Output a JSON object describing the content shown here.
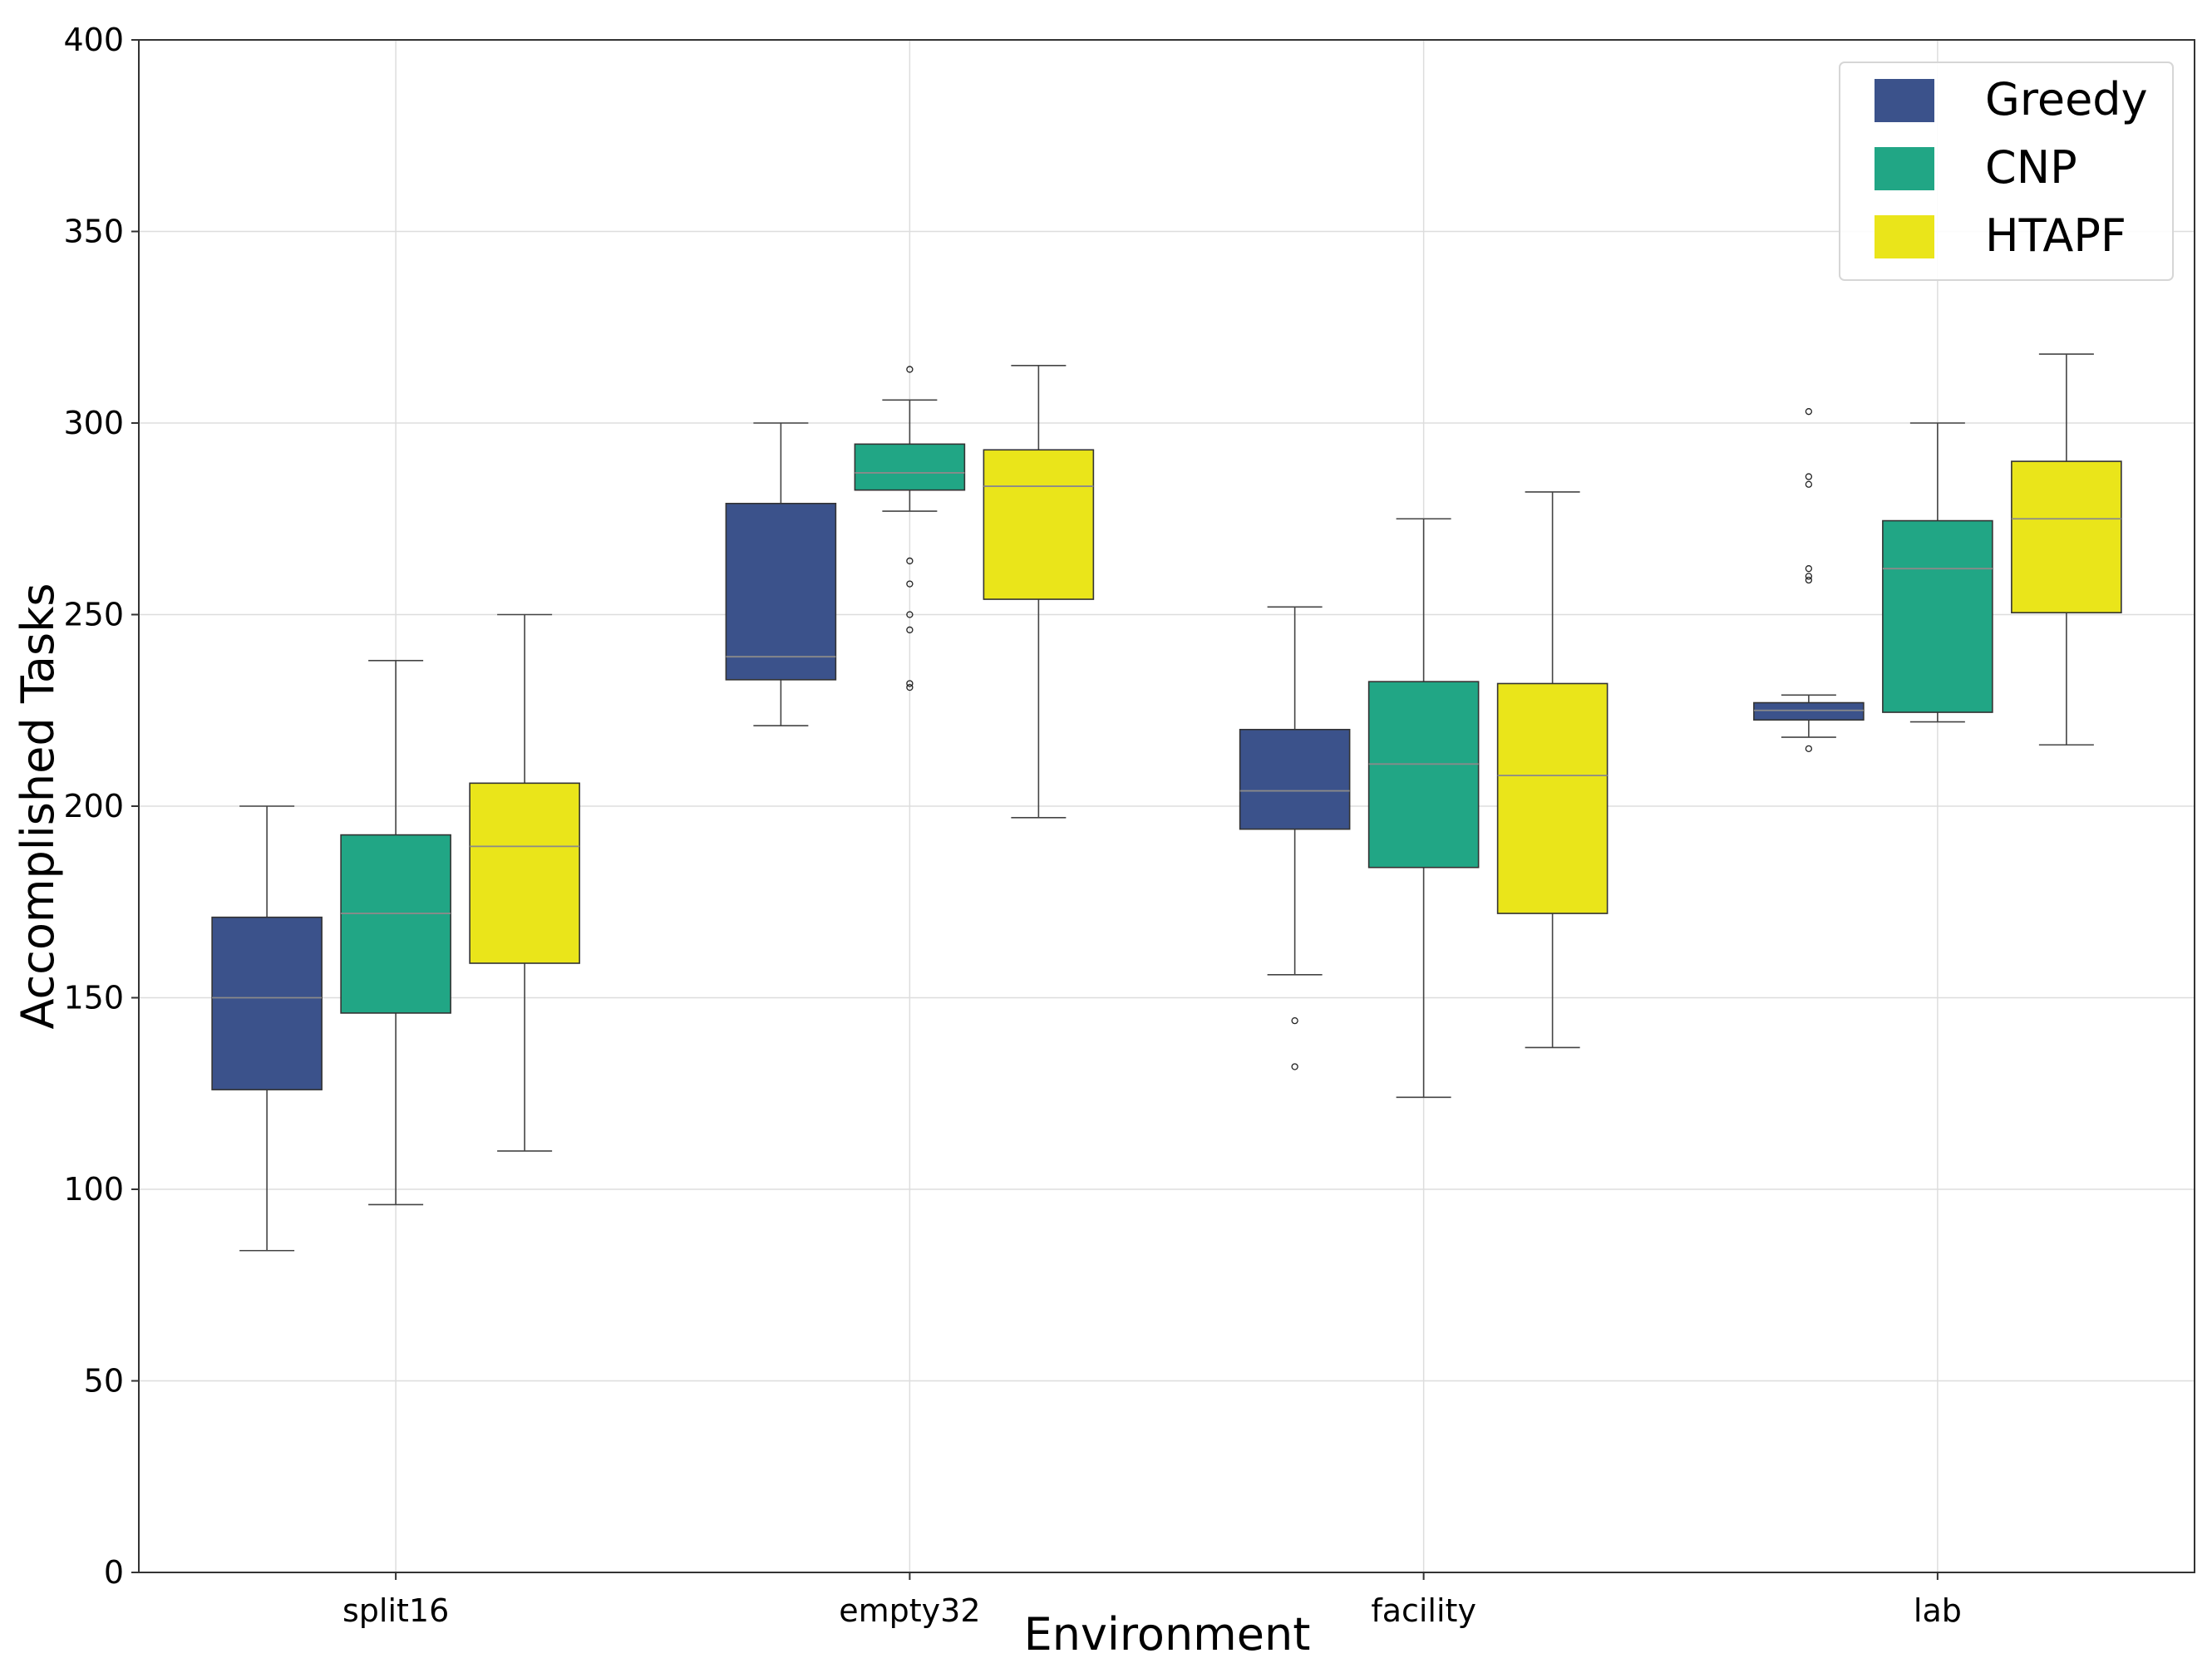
{
  "chart_data": {
    "type": "box",
    "xlabel": "Environment",
    "ylabel": "Accomplished Tasks",
    "ylim": [
      0,
      400
    ],
    "yticks": [
      0,
      50,
      100,
      150,
      200,
      250,
      300,
      350,
      400
    ],
    "grid": true,
    "legend_position": "top-right",
    "categories": [
      "split16",
      "empty32",
      "facility",
      "lab"
    ],
    "series": [
      {
        "name": "Greedy",
        "color": "#3b528b",
        "boxes": [
          {
            "whisker_low": 84,
            "q1": 126,
            "median": 150,
            "q3": 171,
            "whisker_high": 200,
            "outliers": []
          },
          {
            "whisker_low": 221,
            "q1": 233,
            "median": 239,
            "q3": 279,
            "whisker_high": 300,
            "outliers": []
          },
          {
            "whisker_low": 156,
            "q1": 194,
            "median": 204,
            "q3": 220,
            "whisker_high": 252,
            "outliers": [
              132,
              144
            ]
          },
          {
            "whisker_low": 218,
            "q1": 222.5,
            "median": 225,
            "q3": 227,
            "whisker_high": 229,
            "outliers": [
              215,
              259,
              260,
              262,
              284,
              286,
              303
            ]
          }
        ]
      },
      {
        "name": "CNP",
        "color": "#21a685",
        "boxes": [
          {
            "whisker_low": 96,
            "q1": 146,
            "median": 172,
            "q3": 192.5,
            "whisker_high": 238,
            "outliers": []
          },
          {
            "whisker_low": 277,
            "q1": 282.5,
            "median": 287,
            "q3": 294.5,
            "whisker_high": 306,
            "outliers": [
              231,
              232,
              246,
              250,
              258,
              264,
              314
            ]
          },
          {
            "whisker_low": 124,
            "q1": 184,
            "median": 211,
            "q3": 232.5,
            "whisker_high": 275,
            "outliers": []
          },
          {
            "whisker_low": 222,
            "q1": 224.5,
            "median": 262,
            "q3": 274.5,
            "whisker_high": 300,
            "outliers": []
          }
        ]
      },
      {
        "name": "HTAPF",
        "color": "#eae51a",
        "boxes": [
          {
            "whisker_low": 110,
            "q1": 159,
            "median": 189.5,
            "q3": 206,
            "whisker_high": 250,
            "outliers": []
          },
          {
            "whisker_low": 197,
            "q1": 254,
            "median": 283.5,
            "q3": 293,
            "whisker_high": 315,
            "outliers": []
          },
          {
            "whisker_low": 137,
            "q1": 172,
            "median": 208,
            "q3": 232,
            "whisker_high": 282,
            "outliers": []
          },
          {
            "whisker_low": 216,
            "q1": 250.5,
            "median": 275,
            "q3": 290,
            "whisker_high": 318,
            "outliers": []
          }
        ]
      }
    ]
  }
}
